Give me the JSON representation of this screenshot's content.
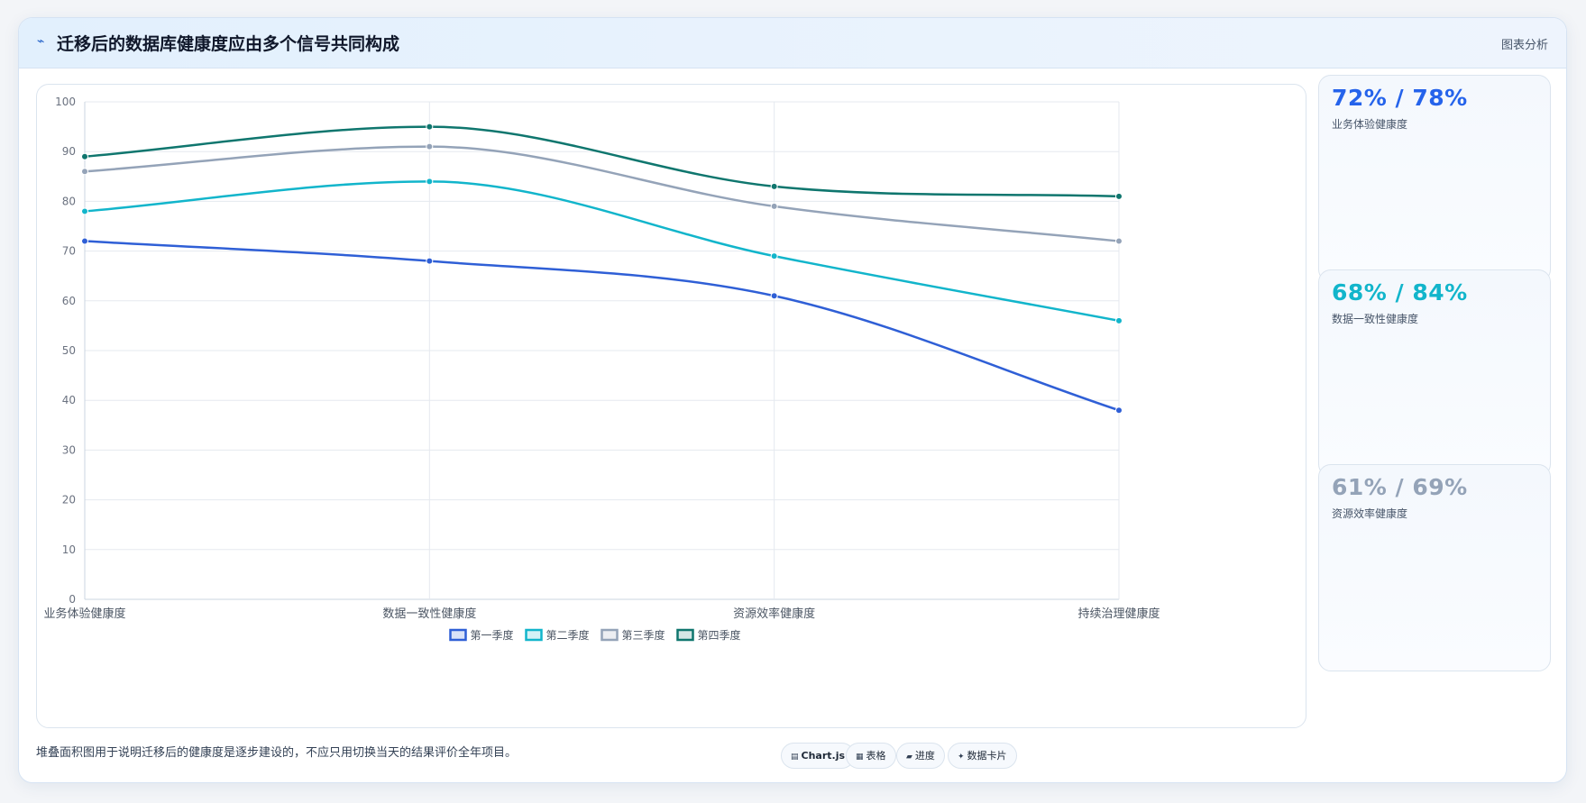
{
  "header": {
    "icon": "pulse-icon",
    "title": "迁移后的数据库健康度应由多个信号共同构成",
    "right_label": "图表分析"
  },
  "chart_data": {
    "type": "line",
    "categories": [
      "业务体验健康度",
      "数据一致性健康度",
      "资源效率健康度",
      "持续治理健康度"
    ],
    "series": [
      {
        "name": "第一季度",
        "values": [
          72,
          68,
          61,
          38
        ],
        "color": "#2f5fd6"
      },
      {
        "name": "第二季度",
        "values": [
          78,
          84,
          69,
          56
        ],
        "color": "#12b5cb"
      },
      {
        "name": "第三季度",
        "values": [
          86,
          91,
          79,
          72
        ],
        "color": "#94a3b8"
      },
      {
        "name": "第四季度",
        "values": [
          89,
          95,
          83,
          81
        ],
        "color": "#0f766e"
      }
    ],
    "yticks": [
      "0",
      "10",
      "20",
      "30",
      "40",
      "50",
      "60",
      "70",
      "80",
      "90",
      "100"
    ],
    "ylim": [
      0,
      100
    ],
    "grid": true,
    "legend_position": "bottom"
  },
  "side_cards": [
    {
      "value": "72% / 78%",
      "label": "业务体验健康度",
      "color": "#2563eb"
    },
    {
      "value": "68% / 84%",
      "label": "数据一致性健康度",
      "color": "#12b5cb"
    },
    {
      "value": "61% / 69%",
      "label": "资源效率健康度",
      "color": "#94a3b8"
    }
  ],
  "footer": {
    "note": "堆叠面积图用于说明迁移后的健康度是逐步建设的，不应只用切换当天的结果评价全年项目。",
    "pills": [
      {
        "icon": "chart-icon",
        "glyph": "▤",
        "label": "Chart.js"
      },
      {
        "icon": "table-icon",
        "glyph": "▦",
        "label": "表格"
      },
      {
        "icon": "progress-icon",
        "glyph": "▰",
        "label": "进度"
      },
      {
        "icon": "card-icon",
        "glyph": "✦",
        "label": "数据卡片"
      }
    ]
  }
}
